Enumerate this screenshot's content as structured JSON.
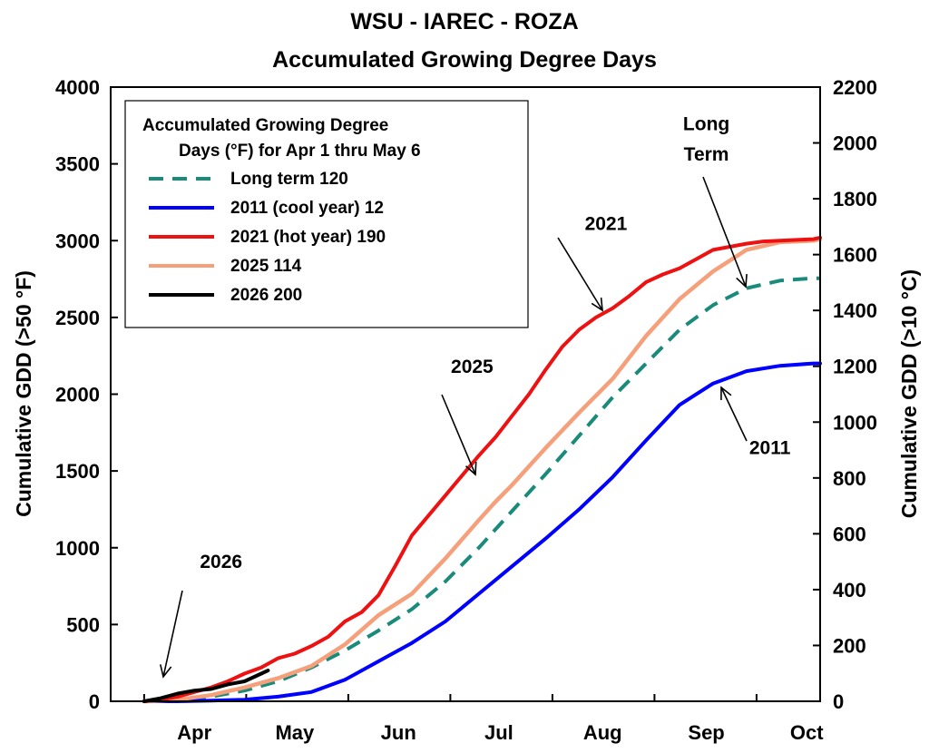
{
  "chart_data": {
    "type": "line",
    "title": "WSU - IAREC - ROZA",
    "subtitle": "Accumulated Growing Degree Days",
    "ylabel_left": "Cumulative GDD (>50 °F)",
    "ylabel_right": "Cumulative GDD (>10 °C)",
    "ylim_left": [
      0,
      4000
    ],
    "ylim_right": [
      0,
      2200
    ],
    "yticks_left": [
      0,
      500,
      1000,
      1500,
      2000,
      2500,
      3000,
      3500,
      4000
    ],
    "yticks_right": [
      0,
      200,
      400,
      600,
      800,
      1000,
      1200,
      1400,
      1600,
      1800,
      2000,
      2200
    ],
    "xlim_days": [
      -10,
      202
    ],
    "xtick_positions_days": [
      15,
      45,
      76,
      106,
      137,
      168,
      198
    ],
    "xtick_labels": [
      "Apr",
      "May",
      "Jun",
      "Jul",
      "Aug",
      "Sep",
      "Oct"
    ],
    "x_unit": "days since Mar 22",
    "legend": {
      "placement": "top-left",
      "title_line1": "Accumulated Growing Degree",
      "title_line2": "Days (°F) for Apr 1 thru May 6"
    },
    "series": [
      {
        "name": "Long term 120",
        "color": "#1a8a7a",
        "dash": true,
        "x": [
          0,
          10,
          20,
          30,
          40,
          50,
          60,
          70,
          80,
          90,
          100,
          110,
          120,
          130,
          140,
          150,
          160,
          170,
          180,
          190,
          200,
          210
        ],
        "y": [
          0,
          10,
          30,
          70,
          130,
          220,
          330,
          460,
          600,
          780,
          1000,
          1240,
          1480,
          1730,
          1980,
          2200,
          2420,
          2580,
          2690,
          2740,
          2755,
          2755
        ]
      },
      {
        "name": "2011 (cool year)  12",
        "color": "#0000ff",
        "dash": false,
        "x": [
          0,
          10,
          20,
          30,
          40,
          50,
          60,
          70,
          80,
          90,
          100,
          110,
          120,
          130,
          140,
          150,
          160,
          170,
          180,
          190,
          200,
          210
        ],
        "y": [
          0,
          0,
          5,
          10,
          30,
          60,
          140,
          260,
          380,
          520,
          700,
          880,
          1060,
          1250,
          1460,
          1700,
          1930,
          2070,
          2150,
          2185,
          2200,
          2200
        ]
      },
      {
        "name": "2021 (hot year) 190",
        "color": "#ee1111",
        "dash": false,
        "x": [
          0,
          5,
          10,
          15,
          20,
          25,
          30,
          35,
          40,
          45,
          50,
          55,
          60,
          65,
          70,
          75,
          80,
          85,
          90,
          95,
          100,
          105,
          110,
          115,
          120,
          125,
          130,
          135,
          140,
          145,
          150,
          155,
          160,
          165,
          170,
          175,
          180,
          185,
          190,
          195,
          200,
          210
        ],
        "y": [
          0,
          10,
          30,
          60,
          90,
          130,
          180,
          220,
          280,
          310,
          360,
          420,
          520,
          580,
          690,
          880,
          1080,
          1210,
          1340,
          1470,
          1600,
          1720,
          1860,
          2000,
          2160,
          2310,
          2420,
          2500,
          2560,
          2640,
          2730,
          2780,
          2820,
          2880,
          2940,
          2960,
          2980,
          2995,
          3000,
          3005,
          3010,
          3020
        ]
      },
      {
        "name": "2025  114",
        "color": "#f5a07a",
        "dash": false,
        "x": [
          0,
          10,
          20,
          30,
          40,
          50,
          60,
          70,
          80,
          90,
          100,
          105,
          110,
          120,
          130,
          140,
          150,
          160,
          170,
          180,
          190,
          200,
          210
        ],
        "y": [
          0,
          10,
          40,
          90,
          150,
          230,
          370,
          560,
          700,
          930,
          1180,
          1300,
          1410,
          1650,
          1880,
          2100,
          2380,
          2620,
          2800,
          2940,
          2990,
          3000,
          3010
        ]
      },
      {
        "name": "2026  200",
        "color": "#000000",
        "dash": false,
        "x": [
          0,
          5,
          10,
          15,
          20,
          25,
          30,
          35,
          37
        ],
        "y": [
          0,
          20,
          50,
          70,
          80,
          110,
          130,
          180,
          200
        ]
      }
    ],
    "annotations": [
      {
        "text": "Long",
        "x": 168,
        "y": 3720
      },
      {
        "text": "Term",
        "x": 168,
        "y": 3520
      },
      {
        "text": "2021",
        "x": 138,
        "y": 3070
      },
      {
        "text": "2025",
        "x": 98,
        "y": 2140
      },
      {
        "text": "2011",
        "x": 187,
        "y": 1610
      },
      {
        "text": "2026",
        "x": 23,
        "y": 870
      }
    ]
  }
}
